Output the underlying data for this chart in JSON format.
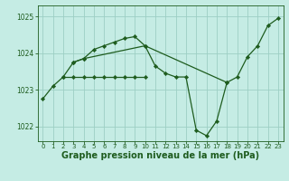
{
  "background_color": "#c5ece4",
  "grid_color": "#9dcfc4",
  "line_color": "#1e5c1e",
  "xlabel": "Graphe pression niveau de la mer (hPa)",
  "xlabel_fontsize": 7.0,
  "ylim": [
    1021.6,
    1025.3
  ],
  "xlim": [
    -0.5,
    23.5
  ],
  "yticks": [
    1022,
    1023,
    1024,
    1025
  ],
  "xticks": [
    0,
    1,
    2,
    3,
    4,
    5,
    6,
    7,
    8,
    9,
    10,
    11,
    12,
    13,
    14,
    15,
    16,
    17,
    18,
    19,
    20,
    21,
    22,
    23
  ],
  "series": [
    {
      "x": [
        0,
        1,
        2,
        3,
        4,
        5,
        6,
        7,
        8,
        9,
        10,
        11,
        12,
        13,
        14,
        15,
        16,
        17,
        18
      ],
      "y": [
        1022.75,
        1023.1,
        1023.35,
        1023.75,
        1023.85,
        1024.1,
        1024.2,
        1024.3,
        1024.4,
        1024.45,
        1024.2,
        1023.65,
        1023.45,
        1023.35,
        1023.35,
        1021.9,
        1021.75,
        1022.15,
        1023.2
      ]
    },
    {
      "x": [
        3,
        4,
        10,
        18,
        19,
        20,
        21,
        22,
        23
      ],
      "y": [
        1023.75,
        1023.85,
        1024.2,
        1023.2,
        1023.35,
        1023.9,
        1024.2,
        1024.75,
        1024.95
      ]
    },
    {
      "x": [
        2,
        3,
        4,
        5,
        6,
        7,
        8,
        9,
        10
      ],
      "y": [
        1023.35,
        1023.35,
        1023.35,
        1023.35,
        1023.35,
        1023.35,
        1023.35,
        1023.35,
        1023.35
      ]
    }
  ]
}
